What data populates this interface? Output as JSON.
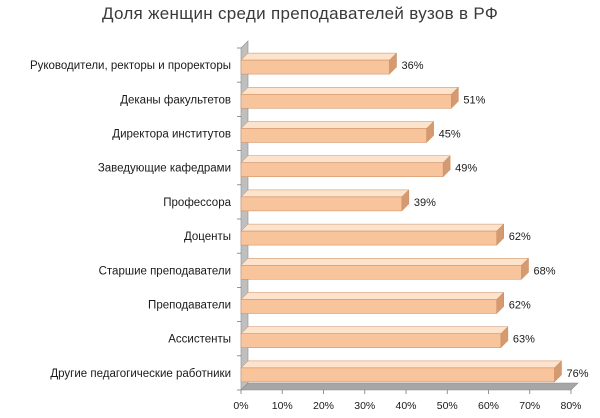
{
  "chart_data": {
    "type": "bar",
    "orientation": "horizontal",
    "title": "Доля женщин среди преподавателей вузов в РФ",
    "categories": [
      "Руководители, ректоры и проректоры",
      "Деканы факультетов",
      "Директора институтов",
      "Заведующие кафедрами",
      "Профессора",
      "Доценты",
      "Старшие преподаватели",
      "Преподаватели",
      "Ассистенты",
      "Другие педагогические работники"
    ],
    "values": [
      36,
      51,
      45,
      49,
      39,
      62,
      68,
      62,
      63,
      76
    ],
    "value_labels": [
      "36%",
      "51%",
      "45%",
      "49%",
      "39%",
      "62%",
      "68%",
      "62%",
      "63%",
      "76%"
    ],
    "xlim": [
      0,
      80
    ],
    "xticks": [
      0,
      10,
      20,
      30,
      40,
      50,
      60,
      70,
      80
    ],
    "xtick_labels": [
      "0%",
      "10%",
      "20%",
      "30%",
      "40%",
      "50%",
      "60%",
      "70%",
      "80%"
    ],
    "xlabel": "",
    "ylabel": "",
    "grid": false,
    "legend": "none",
    "style": "3d",
    "colors": {
      "bar_front": "#f8c49c",
      "bar_top": "#fde2cc",
      "bar_side": "#d69a70",
      "bar_edge": "#c98a5e",
      "wall": "#bfbfbf",
      "wall_dark": "#8c8c8c",
      "floor": "#a6a6a6"
    }
  }
}
